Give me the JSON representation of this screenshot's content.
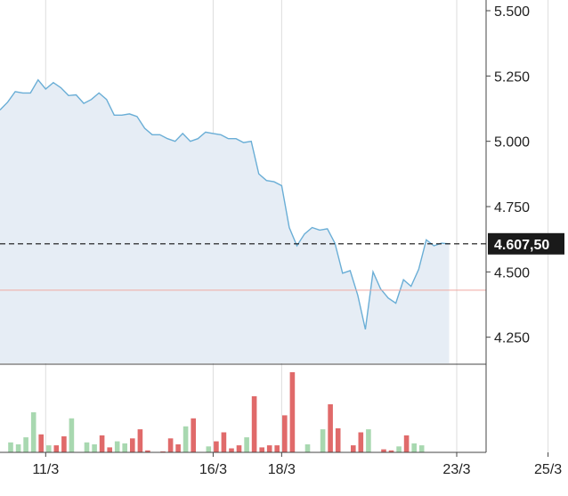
{
  "chart_data": {
    "type": "area",
    "title": "",
    "xlabel": "",
    "ylabel": "",
    "ylim": [
      4150,
      5500
    ],
    "yticks": [
      4250,
      4500,
      4750,
      5000,
      5250,
      5500
    ],
    "ytick_labels": [
      "4.250",
      "4.500",
      "4.750",
      "5.000",
      "5.250",
      "5.500"
    ],
    "xticks": [
      {
        "index": 6,
        "label": "11/3"
      },
      {
        "index": 28,
        "label": "16/3"
      },
      {
        "index": 37,
        "label": "18/3"
      },
      {
        "index": 60,
        "label": "23/3"
      },
      {
        "index": 72,
        "label": "25/3"
      }
    ],
    "price_series": [
      5120,
      5150,
      5190,
      5185,
      5185,
      5235,
      5200,
      5225,
      5205,
      5175,
      5178,
      5145,
      5160,
      5185,
      5160,
      5100,
      5100,
      5105,
      5095,
      5050,
      5025,
      5025,
      5010,
      5000,
      5030,
      5000,
      5010,
      5035,
      5030,
      5025,
      5010,
      5010,
      4995,
      5000,
      4875,
      4850,
      4845,
      4830,
      4670,
      4600,
      4645,
      4670,
      4660,
      4665,
      4610,
      4495,
      4505,
      4410,
      4280,
      4500,
      4435,
      4400,
      4380,
      4470,
      4445,
      4510,
      4623,
      4600,
      4610,
      4607.5
    ],
    "current_price": 4607.5,
    "current_price_label": "4.607,50",
    "reference_line": 4430,
    "volume": [
      {
        "v": 10,
        "c": "up"
      },
      {
        "v": 8,
        "c": "up"
      },
      {
        "v": 15,
        "c": "up"
      },
      {
        "v": 40,
        "c": "up"
      },
      {
        "v": 18,
        "c": "down"
      },
      {
        "v": 7,
        "c": "up"
      },
      {
        "v": 7,
        "c": "down"
      },
      {
        "v": 16,
        "c": "down"
      },
      {
        "v": 34,
        "c": "up"
      },
      {
        "v": 0,
        "c": "up"
      },
      {
        "v": 10,
        "c": "up"
      },
      {
        "v": 8,
        "c": "up"
      },
      {
        "v": 17,
        "c": "down"
      },
      {
        "v": 5,
        "c": "down"
      },
      {
        "v": 11,
        "c": "up"
      },
      {
        "v": 9,
        "c": "up"
      },
      {
        "v": 14,
        "c": "down"
      },
      {
        "v": 23,
        "c": "down"
      },
      {
        "v": 2,
        "c": "down"
      },
      {
        "v": 0,
        "c": "up"
      },
      {
        "v": 1,
        "c": "down"
      },
      {
        "v": 14,
        "c": "down"
      },
      {
        "v": 8,
        "c": "down"
      },
      {
        "v": 26,
        "c": "up"
      },
      {
        "v": 34,
        "c": "down"
      },
      {
        "v": 0,
        "c": "up"
      },
      {
        "v": 6,
        "c": "up"
      },
      {
        "v": 11,
        "c": "down"
      },
      {
        "v": 20,
        "c": "down"
      },
      {
        "v": 4,
        "c": "down"
      },
      {
        "v": 7,
        "c": "down"
      },
      {
        "v": 15,
        "c": "up"
      },
      {
        "v": 56,
        "c": "down"
      },
      {
        "v": 5,
        "c": "down"
      },
      {
        "v": 7,
        "c": "down"
      },
      {
        "v": 7,
        "c": "down"
      },
      {
        "v": 37,
        "c": "down"
      },
      {
        "v": 80,
        "c": "down"
      },
      {
        "v": 0,
        "c": "up"
      },
      {
        "v": 8,
        "c": "up"
      },
      {
        "v": 0,
        "c": "up"
      },
      {
        "v": 23,
        "c": "up"
      },
      {
        "v": 48,
        "c": "down"
      },
      {
        "v": 24,
        "c": "down"
      },
      {
        "v": 0,
        "c": "up"
      },
      {
        "v": 7,
        "c": "down"
      },
      {
        "v": 20,
        "c": "down"
      },
      {
        "v": 23,
        "c": "up"
      },
      {
        "v": 0,
        "c": "up"
      },
      {
        "v": 3,
        "c": "down"
      },
      {
        "v": 2,
        "c": "down"
      },
      {
        "v": 6,
        "c": "up"
      },
      {
        "v": 17,
        "c": "down"
      },
      {
        "v": 9,
        "c": "up"
      },
      {
        "v": 7,
        "c": "up"
      },
      {
        "v": 0,
        "c": "up"
      }
    ],
    "colors": {
      "line": "#6aaed6",
      "area_fill": "#e6edf5",
      "up": "#a8d8b0",
      "down": "#e06a6a",
      "reference": "#f0a8a0",
      "grid": "#dddddd",
      "axis": "#444444",
      "label_bg": "#1a1a1a",
      "label_text": "#ffffff"
    },
    "grid": true
  }
}
